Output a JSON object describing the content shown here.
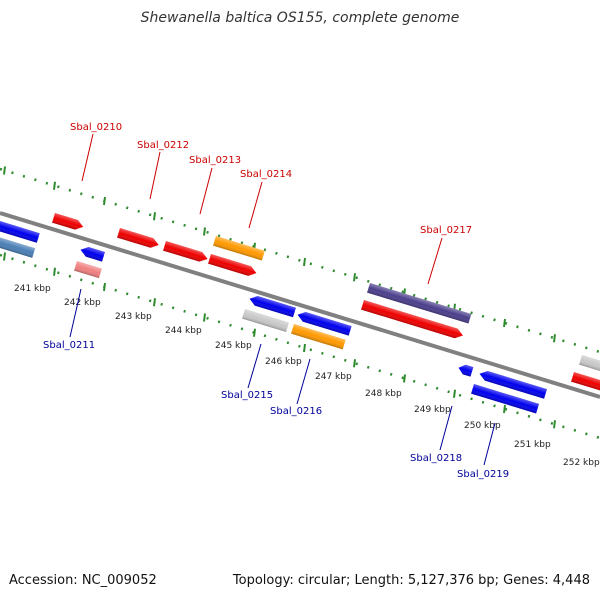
{
  "title": "Shewanella baltica OS155, complete genome",
  "footer": {
    "accession": "Accession: NC_009052",
    "summary": "Topology: circular; Length: 5,127,376 bp; Genes: 4,448"
  },
  "scale_labels": [
    "241 kbp",
    "242 kbp",
    "243 kbp",
    "244 kbp",
    "245 kbp",
    "246 kbp",
    "247 kbp",
    "248 kbp",
    "249 kbp",
    "250 kbp",
    "251 kbp",
    "252 kbp"
  ],
  "gene_labels": {
    "top": [
      "Sbal_0210",
      "Sbal_0212",
      "Sbal_0213",
      "Sbal_0214",
      "Sbal_0217"
    ],
    "bottom": [
      "Sbal_0211",
      "Sbal_0215",
      "Sbal_0216",
      "Sbal_0218",
      "Sbal_0219"
    ]
  },
  "colors": {
    "backbone": "#808080",
    "ruler": "#2e8b2e",
    "plus_strand_label": "#cc0000",
    "minus_strand_label": "#000099",
    "red": "#ee0000",
    "blue": "#0000ee",
    "orange": "#ff9900",
    "purple": "#4b3f8c",
    "grey": "#c8c8c8",
    "steelblue": "#4a7fb5",
    "pink": "#f08080"
  }
}
